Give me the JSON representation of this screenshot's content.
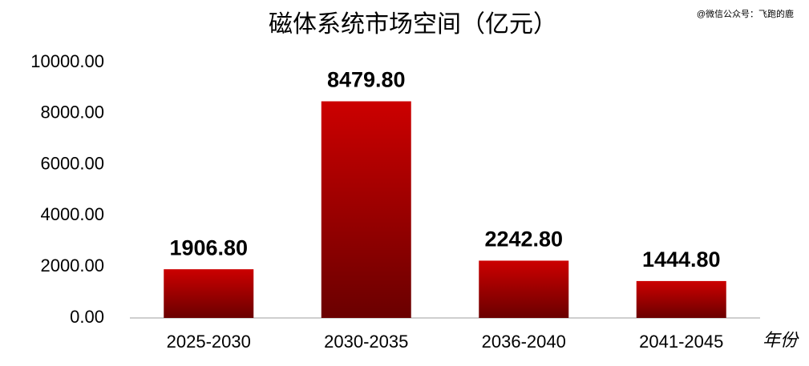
{
  "chart_data": {
    "type": "bar",
    "title": "磁体系统市场空间（亿元）",
    "watermark": "@微信公众号：飞跑的鹿",
    "x_label": "年份",
    "categories": [
      "2025-2030",
      "2030-2035",
      "2036-2040",
      "2041-2045"
    ],
    "values": [
      1906.8,
      8479.8,
      2242.8,
      1444.8
    ],
    "value_labels": [
      "1906.80",
      "8479.80",
      "2242.80",
      "1444.80"
    ],
    "color": "#cc0000",
    "ylim": [
      0,
      10000
    ],
    "yticks": [
      {
        "value": 0,
        "label": "0.00"
      },
      {
        "value": 2000,
        "label": "2000.00"
      },
      {
        "value": 4000,
        "label": "4000.00"
      },
      {
        "value": 6000,
        "label": "6000.00"
      },
      {
        "value": 8000,
        "label": "8000.00"
      },
      {
        "value": 10000,
        "label": "10000.00"
      }
    ],
    "grid": false
  }
}
